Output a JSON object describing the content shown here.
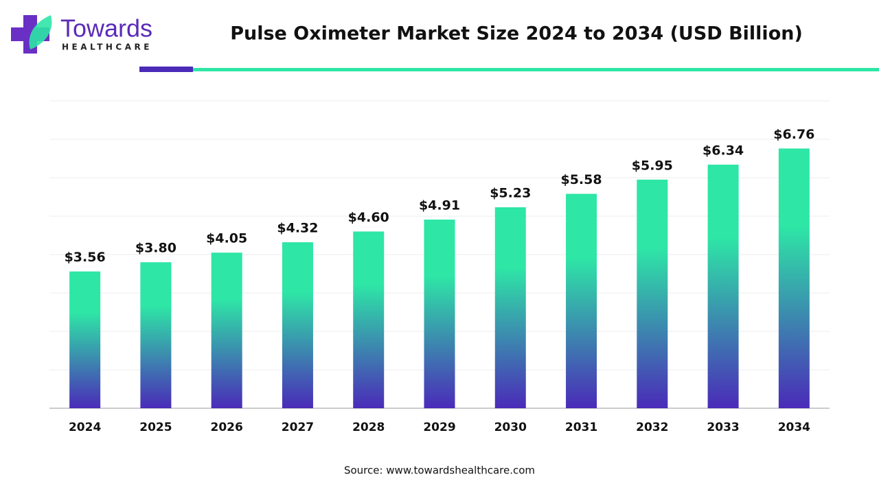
{
  "logo": {
    "name": "Towards",
    "tagline": "HEALTHCARE"
  },
  "source": "Source: www.towardshealthcare.com",
  "chart_data": {
    "type": "bar",
    "title": "Pulse Oximeter Market Size 2024 to 2034 (USD Billion)",
    "categories": [
      "2024",
      "2025",
      "2026",
      "2027",
      "2028",
      "2029",
      "2030",
      "2031",
      "2032",
      "2033",
      "2034"
    ],
    "values": [
      3.56,
      3.8,
      4.05,
      4.32,
      4.6,
      4.91,
      5.23,
      5.58,
      5.95,
      6.34,
      6.76
    ],
    "value_labels": [
      "$3.56",
      "$3.80",
      "$4.05",
      "$4.32",
      "$4.60",
      "$4.91",
      "$5.23",
      "$5.58",
      "$5.95",
      "$6.34",
      "$6.76"
    ],
    "gradient": [
      "#2ee6a6",
      "#4a2bb8"
    ],
    "ylim": [
      0,
      8
    ],
    "yticks": [
      0,
      1,
      2,
      3,
      4,
      5,
      6,
      7,
      8
    ],
    "grid": true
  }
}
